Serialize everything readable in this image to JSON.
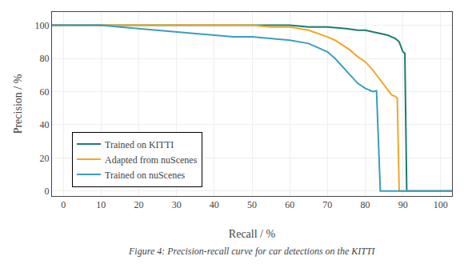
{
  "chart_data": {
    "type": "line",
    "xlabel": "Recall / %",
    "ylabel": "Precision / %",
    "caption": "Figure 4: Precision-recall curve for car detections on the KITTI",
    "xlim": [
      -3,
      103
    ],
    "ylim": [
      -3,
      108
    ],
    "xticks": [
      0,
      10,
      20,
      30,
      40,
      50,
      60,
      70,
      80,
      90,
      100
    ],
    "yticks": [
      0,
      20,
      40,
      60,
      80,
      100
    ],
    "grid": true,
    "legend": "lower left",
    "series": [
      {
        "name": "Trained on KITTI",
        "color": "#1a7d6e",
        "x": [
          -3,
          0,
          5,
          10,
          15,
          20,
          25,
          30,
          35,
          40,
          45,
          50,
          55,
          60,
          65,
          70,
          75,
          78,
          80,
          82,
          84,
          86,
          87,
          88,
          89,
          90,
          90.5,
          91,
          93,
          95,
          100,
          103
        ],
        "values": [
          100,
          100,
          100,
          100,
          100,
          100,
          100,
          100,
          100,
          100,
          100,
          100,
          100,
          100,
          99,
          99,
          98,
          97,
          97,
          96,
          95,
          94,
          93,
          92,
          90,
          84,
          83,
          0,
          0,
          0,
          0,
          0
        ]
      },
      {
        "name": "Adapted from nuScenes",
        "color": "#f5a623",
        "x": [
          -3,
          0,
          5,
          10,
          15,
          20,
          25,
          30,
          35,
          40,
          45,
          50,
          55,
          60,
          65,
          70,
          72,
          74,
          76,
          78,
          80,
          82,
          84,
          86,
          87,
          88,
          88.5,
          89,
          90,
          91,
          93,
          95,
          100,
          103
        ],
        "values": [
          100,
          100,
          100,
          100,
          100,
          100,
          100,
          100,
          100,
          100,
          100,
          100,
          99,
          99,
          97,
          93,
          91,
          88,
          85,
          81,
          78,
          73,
          67,
          61,
          58,
          57,
          56,
          0,
          0,
          0,
          0,
          0,
          0,
          0
        ]
      },
      {
        "name": "Trained on nuScenes",
        "color": "#3b9dbf",
        "x": [
          -3,
          0,
          5,
          10,
          15,
          20,
          25,
          30,
          35,
          40,
          45,
          50,
          55,
          60,
          65,
          68,
          70,
          72,
          74,
          76,
          78,
          80,
          81,
          82,
          83,
          84,
          84.5,
          85,
          88,
          90,
          93,
          95,
          100,
          103
        ],
        "values": [
          100,
          100,
          100,
          100,
          99,
          98,
          97,
          96,
          95,
          94,
          93,
          93,
          92,
          91,
          89,
          86,
          84,
          80,
          75,
          70,
          65,
          62,
          61,
          60,
          60.5,
          0,
          0,
          0,
          0,
          0,
          0,
          0,
          0,
          0
        ]
      }
    ]
  }
}
